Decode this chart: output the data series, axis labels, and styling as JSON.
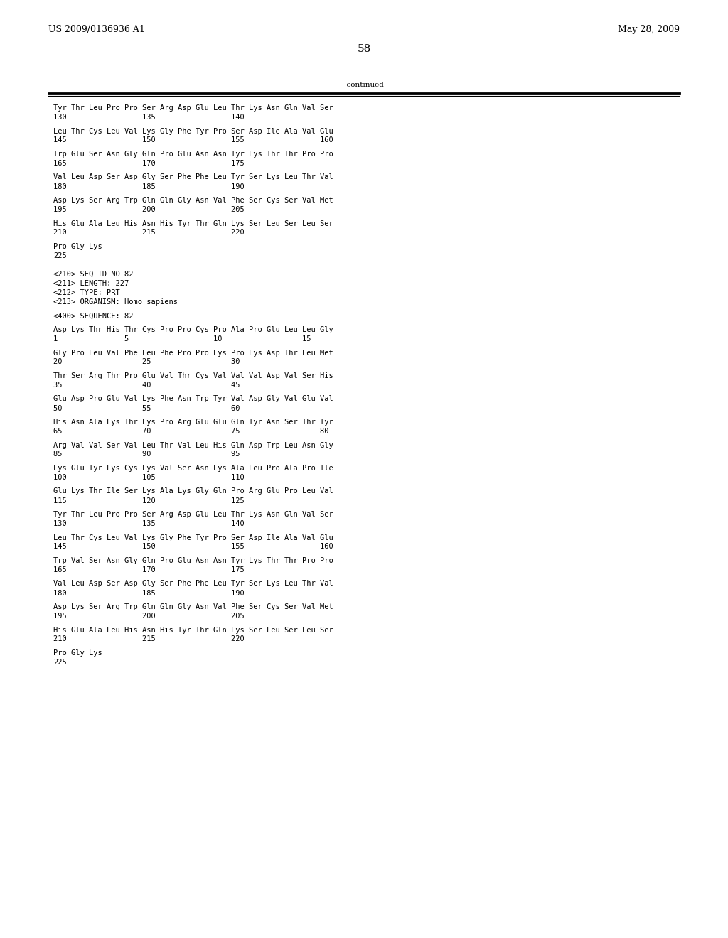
{
  "header_left": "US 2009/0136936 A1",
  "header_right": "May 28, 2009",
  "page_number": "58",
  "continued_label": "-continued",
  "background_color": "#ffffff",
  "text_color": "#000000",
  "font_size": 7.5,
  "mono_font": "monospace",
  "content": [
    {
      "type": "seq_line",
      "text": "Tyr Thr Leu Pro Pro Ser Arg Asp Glu Leu Thr Lys Asn Gln Val Ser"
    },
    {
      "type": "num_line",
      "text": "130                 135                 140"
    },
    {
      "type": "blank"
    },
    {
      "type": "seq_line",
      "text": "Leu Thr Cys Leu Val Lys Gly Phe Tyr Pro Ser Asp Ile Ala Val Glu"
    },
    {
      "type": "num_line",
      "text": "145                 150                 155                 160"
    },
    {
      "type": "blank"
    },
    {
      "type": "seq_line",
      "text": "Trp Glu Ser Asn Gly Gln Pro Glu Asn Asn Tyr Lys Thr Thr Pro Pro"
    },
    {
      "type": "num_line",
      "text": "165                 170                 175"
    },
    {
      "type": "blank"
    },
    {
      "type": "seq_line",
      "text": "Val Leu Asp Ser Asp Gly Ser Phe Phe Leu Tyr Ser Lys Leu Thr Val"
    },
    {
      "type": "num_line",
      "text": "180                 185                 190"
    },
    {
      "type": "blank"
    },
    {
      "type": "seq_line",
      "text": "Asp Lys Ser Arg Trp Gln Gln Gly Asn Val Phe Ser Cys Ser Val Met"
    },
    {
      "type": "num_line",
      "text": "195                 200                 205"
    },
    {
      "type": "blank"
    },
    {
      "type": "seq_line",
      "text": "His Glu Ala Leu His Asn His Tyr Thr Gln Lys Ser Leu Ser Leu Ser"
    },
    {
      "type": "num_line",
      "text": "210                 215                 220"
    },
    {
      "type": "blank"
    },
    {
      "type": "seq_line",
      "text": "Pro Gly Lys"
    },
    {
      "type": "num_line",
      "text": "225"
    },
    {
      "type": "blank"
    },
    {
      "type": "blank"
    },
    {
      "type": "meta_line",
      "text": "<210> SEQ ID NO 82"
    },
    {
      "type": "meta_line",
      "text": "<211> LENGTH: 227"
    },
    {
      "type": "meta_line",
      "text": "<212> TYPE: PRT"
    },
    {
      "type": "meta_line",
      "text": "<213> ORGANISM: Homo sapiens"
    },
    {
      "type": "blank"
    },
    {
      "type": "meta_line",
      "text": "<400> SEQUENCE: 82"
    },
    {
      "type": "blank"
    },
    {
      "type": "seq_line",
      "text": "Asp Lys Thr His Thr Cys Pro Pro Cys Pro Ala Pro Glu Leu Leu Gly"
    },
    {
      "type": "num_line",
      "text": "1               5                   10                  15"
    },
    {
      "type": "blank"
    },
    {
      "type": "seq_line",
      "text": "Gly Pro Leu Val Phe Leu Phe Pro Pro Lys Pro Lys Asp Thr Leu Met"
    },
    {
      "type": "num_line",
      "text": "20                  25                  30"
    },
    {
      "type": "blank"
    },
    {
      "type": "seq_line",
      "text": "Thr Ser Arg Thr Pro Glu Val Thr Cys Val Val Val Asp Val Ser His"
    },
    {
      "type": "num_line",
      "text": "35                  40                  45"
    },
    {
      "type": "blank"
    },
    {
      "type": "seq_line",
      "text": "Glu Asp Pro Glu Val Lys Phe Asn Trp Tyr Val Asp Gly Val Glu Val"
    },
    {
      "type": "num_line",
      "text": "50                  55                  60"
    },
    {
      "type": "blank"
    },
    {
      "type": "seq_line",
      "text": "His Asn Ala Lys Thr Lys Pro Arg Glu Glu Gln Tyr Asn Ser Thr Tyr"
    },
    {
      "type": "num_line",
      "text": "65                  70                  75                  80"
    },
    {
      "type": "blank"
    },
    {
      "type": "seq_line",
      "text": "Arg Val Val Ser Val Leu Thr Val Leu His Gln Asp Trp Leu Asn Gly"
    },
    {
      "type": "num_line",
      "text": "85                  90                  95"
    },
    {
      "type": "blank"
    },
    {
      "type": "seq_line",
      "text": "Lys Glu Tyr Lys Cys Lys Val Ser Asn Lys Ala Leu Pro Ala Pro Ile"
    },
    {
      "type": "num_line",
      "text": "100                 105                 110"
    },
    {
      "type": "blank"
    },
    {
      "type": "seq_line",
      "text": "Glu Lys Thr Ile Ser Lys Ala Lys Gly Gln Pro Arg Glu Pro Leu Val"
    },
    {
      "type": "num_line",
      "text": "115                 120                 125"
    },
    {
      "type": "blank"
    },
    {
      "type": "seq_line",
      "text": "Tyr Thr Leu Pro Pro Ser Arg Asp Glu Leu Thr Lys Asn Gln Val Ser"
    },
    {
      "type": "num_line",
      "text": "130                 135                 140"
    },
    {
      "type": "blank"
    },
    {
      "type": "seq_line",
      "text": "Leu Thr Cys Leu Val Lys Gly Phe Tyr Pro Ser Asp Ile Ala Val Glu"
    },
    {
      "type": "num_line",
      "text": "145                 150                 155                 160"
    },
    {
      "type": "blank"
    },
    {
      "type": "seq_line",
      "text": "Trp Val Ser Asn Gly Gln Pro Glu Asn Asn Tyr Lys Thr Thr Pro Pro"
    },
    {
      "type": "num_line",
      "text": "165                 170                 175"
    },
    {
      "type": "blank"
    },
    {
      "type": "seq_line",
      "text": "Val Leu Asp Ser Asp Gly Ser Phe Phe Leu Tyr Ser Lys Leu Thr Val"
    },
    {
      "type": "num_line",
      "text": "180                 185                 190"
    },
    {
      "type": "blank"
    },
    {
      "type": "seq_line",
      "text": "Asp Lys Ser Arg Trp Gln Gln Gly Asn Val Phe Ser Cys Ser Val Met"
    },
    {
      "type": "num_line",
      "text": "195                 200                 205"
    },
    {
      "type": "blank"
    },
    {
      "type": "seq_line",
      "text": "His Glu Ala Leu His Asn His Tyr Thr Gln Lys Ser Leu Ser Leu Ser"
    },
    {
      "type": "num_line",
      "text": "210                 215                 220"
    },
    {
      "type": "blank"
    },
    {
      "type": "seq_line",
      "text": "Pro Gly Lys"
    },
    {
      "type": "num_line",
      "text": "225"
    }
  ]
}
